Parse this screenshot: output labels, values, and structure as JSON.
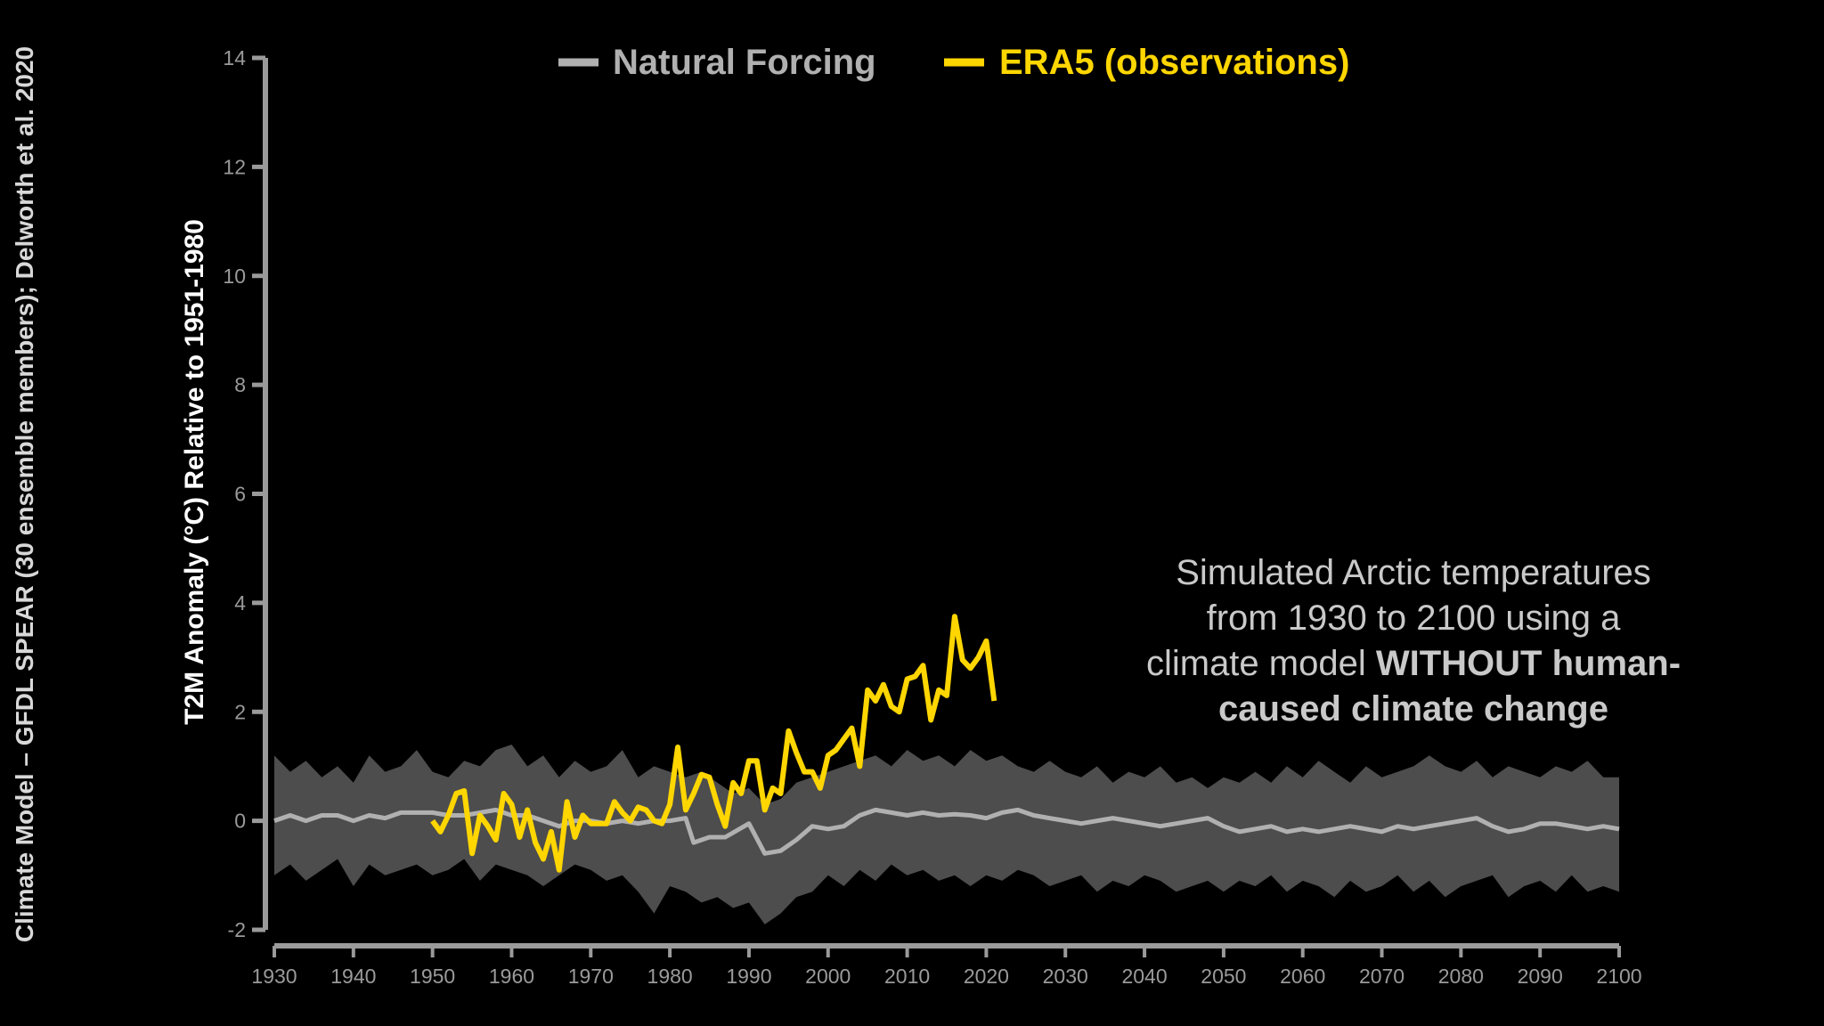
{
  "credit": "Climate Model – GFDL SPEAR (30 ensemble members); Delworth et al. 2020",
  "annotation": {
    "line1": "Simulated Arctic temperatures",
    "line2": "from 1930 to 2100 using a",
    "line3_normal": "climate model ",
    "line3_bold": "WITHOUT human-",
    "line4_bold": "caused climate change"
  },
  "chart_data": {
    "type": "line",
    "title": "",
    "xlabel": "",
    "ylabel": "T2M Anomaly (°C) Relative to 1951-1980",
    "xlim": [
      1930,
      2100
    ],
    "ylim": [
      -2,
      14
    ],
    "x_ticks": [
      1930,
      1940,
      1950,
      1960,
      1970,
      1980,
      1990,
      2000,
      2010,
      2020,
      2030,
      2040,
      2050,
      2060,
      2070,
      2080,
      2090,
      2100
    ],
    "y_ticks": [
      -2,
      0,
      2,
      4,
      6,
      8,
      10,
      12,
      14
    ],
    "grid": false,
    "legend_position": "top-center",
    "colors": {
      "natural": "#b0b0b0",
      "band": "#4d4d4d",
      "era5": "#ffd600"
    },
    "series": [
      {
        "name": "Natural Forcing",
        "kind": "ensemble-mean",
        "x": [
          1930,
          1932,
          1934,
          1936,
          1938,
          1940,
          1942,
          1944,
          1946,
          1948,
          1950,
          1952,
          1954,
          1956,
          1958,
          1960,
          1962,
          1964,
          1966,
          1968,
          1970,
          1972,
          1974,
          1976,
          1978,
          1980,
          1982,
          1983,
          1985,
          1987,
          1990,
          1992,
          1994,
          1996,
          1998,
          2000,
          2002,
          2004,
          2006,
          2008,
          2010,
          2012,
          2014,
          2016,
          2018,
          2020,
          2022,
          2024,
          2026,
          2028,
          2030,
          2032,
          2034,
          2036,
          2038,
          2040,
          2042,
          2044,
          2046,
          2048,
          2050,
          2052,
          2054,
          2056,
          2058,
          2060,
          2062,
          2064,
          2066,
          2068,
          2070,
          2072,
          2074,
          2076,
          2078,
          2080,
          2082,
          2084,
          2086,
          2088,
          2090,
          2092,
          2094,
          2096,
          2098,
          2100
        ],
        "values": [
          0.0,
          0.1,
          0.0,
          0.1,
          0.1,
          0.0,
          0.1,
          0.05,
          0.15,
          0.15,
          0.15,
          0.1,
          0.1,
          0.15,
          0.2,
          0.1,
          0.1,
          0.0,
          -0.1,
          0.0,
          0.0,
          -0.05,
          0.0,
          -0.05,
          0.0,
          0.0,
          0.05,
          -0.4,
          -0.3,
          -0.3,
          -0.05,
          -0.6,
          -0.55,
          -0.35,
          -0.1,
          -0.15,
          -0.1,
          0.1,
          0.2,
          0.15,
          0.1,
          0.15,
          0.1,
          0.12,
          0.1,
          0.05,
          0.15,
          0.2,
          0.1,
          0.05,
          0.0,
          -0.05,
          0.0,
          0.05,
          0.0,
          -0.05,
          -0.1,
          -0.05,
          0.0,
          0.05,
          -0.1,
          -0.2,
          -0.15,
          -0.1,
          -0.2,
          -0.15,
          -0.2,
          -0.15,
          -0.1,
          -0.15,
          -0.2,
          -0.1,
          -0.15,
          -0.1,
          -0.05,
          0.0,
          0.05,
          -0.1,
          -0.2,
          -0.15,
          -0.05,
          -0.05,
          -0.1,
          -0.15,
          -0.1,
          -0.15
        ]
      },
      {
        "name": "Natural Forcing ensemble range",
        "kind": "band",
        "x": [
          1930,
          1932,
          1934,
          1936,
          1938,
          1940,
          1942,
          1944,
          1946,
          1948,
          1950,
          1952,
          1954,
          1956,
          1958,
          1960,
          1962,
          1964,
          1966,
          1968,
          1970,
          1972,
          1974,
          1976,
          1978,
          1980,
          1982,
          1984,
          1986,
          1988,
          1990,
          1992,
          1994,
          1996,
          1998,
          2000,
          2002,
          2004,
          2006,
          2008,
          2010,
          2012,
          2014,
          2016,
          2018,
          2020,
          2022,
          2024,
          2026,
          2028,
          2030,
          2032,
          2034,
          2036,
          2038,
          2040,
          2042,
          2044,
          2046,
          2048,
          2050,
          2052,
          2054,
          2056,
          2058,
          2060,
          2062,
          2064,
          2066,
          2068,
          2070,
          2072,
          2074,
          2076,
          2078,
          2080,
          2082,
          2084,
          2086,
          2088,
          2090,
          2092,
          2094,
          2096,
          2098,
          2100
        ],
        "upper": [
          1.2,
          0.9,
          1.1,
          0.8,
          1.0,
          0.7,
          1.2,
          0.9,
          1.0,
          1.3,
          0.9,
          0.8,
          1.1,
          1.0,
          1.3,
          1.4,
          1.0,
          1.2,
          0.8,
          1.1,
          0.9,
          1.0,
          1.3,
          0.8,
          1.0,
          0.9,
          0.8,
          0.9,
          0.7,
          0.5,
          0.6,
          0.3,
          0.4,
          0.7,
          0.8,
          0.9,
          1.0,
          1.1,
          1.2,
          1.0,
          1.3,
          1.1,
          1.2,
          1.0,
          1.3,
          1.1,
          1.2,
          1.0,
          0.9,
          1.1,
          0.9,
          0.8,
          1.0,
          0.7,
          0.9,
          0.8,
          1.0,
          0.7,
          0.8,
          0.6,
          0.8,
          0.7,
          0.9,
          0.7,
          1.0,
          0.8,
          1.1,
          0.9,
          0.7,
          1.0,
          0.8,
          0.9,
          1.0,
          1.2,
          1.0,
          0.9,
          1.1,
          0.8,
          1.0,
          0.9,
          0.8,
          1.0,
          0.9,
          1.1,
          0.8,
          0.8
        ],
        "lower": [
          -1.0,
          -0.8,
          -1.1,
          -0.9,
          -0.7,
          -1.2,
          -0.8,
          -1.0,
          -0.9,
          -0.8,
          -1.0,
          -0.9,
          -0.7,
          -1.1,
          -0.8,
          -0.9,
          -1.0,
          -1.2,
          -1.0,
          -0.8,
          -0.9,
          -1.1,
          -1.0,
          -1.3,
          -1.7,
          -1.2,
          -1.3,
          -1.5,
          -1.4,
          -1.6,
          -1.5,
          -1.9,
          -1.7,
          -1.4,
          -1.3,
          -1.0,
          -1.2,
          -0.9,
          -1.1,
          -0.8,
          -1.0,
          -0.9,
          -1.1,
          -1.0,
          -1.2,
          -1.0,
          -1.1,
          -0.9,
          -1.0,
          -1.2,
          -1.1,
          -1.0,
          -1.3,
          -1.1,
          -1.2,
          -1.0,
          -1.1,
          -1.3,
          -1.2,
          -1.1,
          -1.3,
          -1.1,
          -1.2,
          -1.0,
          -1.3,
          -1.1,
          -1.2,
          -1.4,
          -1.1,
          -1.3,
          -1.2,
          -1.0,
          -1.3,
          -1.1,
          -1.4,
          -1.2,
          -1.1,
          -1.0,
          -1.4,
          -1.2,
          -1.1,
          -1.3,
          -1.0,
          -1.3,
          -1.2,
          -1.3
        ]
      },
      {
        "name": "ERA5 (observations)",
        "kind": "observations",
        "x": [
          1950,
          1951,
          1952,
          1953,
          1954,
          1955,
          1956,
          1957,
          1958,
          1959,
          1960,
          1961,
          1962,
          1963,
          1964,
          1965,
          1966,
          1967,
          1968,
          1969,
          1970,
          1971,
          1972,
          1973,
          1974,
          1975,
          1976,
          1977,
          1978,
          1979,
          1980,
          1981,
          1982,
          1983,
          1984,
          1985,
          1986,
          1987,
          1988,
          1989,
          1990,
          1991,
          1992,
          1993,
          1994,
          1995,
          1996,
          1997,
          1998,
          1999,
          2000,
          2001,
          2002,
          2003,
          2004,
          2005,
          2006,
          2007,
          2008,
          2009,
          2010,
          2011,
          2012,
          2013,
          2014,
          2015,
          2016,
          2017,
          2018,
          2019,
          2020,
          2021
        ],
        "values": [
          0.0,
          -0.2,
          0.1,
          0.5,
          0.55,
          -0.6,
          0.1,
          -0.1,
          -0.35,
          0.5,
          0.3,
          -0.3,
          0.2,
          -0.4,
          -0.7,
          -0.2,
          -0.9,
          0.35,
          -0.3,
          0.1,
          -0.05,
          -0.05,
          -0.05,
          0.35,
          0.15,
          0.0,
          0.25,
          0.2,
          0.0,
          -0.05,
          0.3,
          1.35,
          0.2,
          0.5,
          0.85,
          0.8,
          0.3,
          -0.1,
          0.7,
          0.5,
          1.1,
          1.1,
          0.2,
          0.6,
          0.5,
          1.65,
          1.25,
          0.9,
          0.9,
          0.6,
          1.2,
          1.3,
          1.5,
          1.7,
          1.0,
          2.4,
          2.2,
          2.5,
          2.1,
          2.0,
          2.6,
          2.65,
          2.85,
          1.85,
          2.4,
          2.3,
          3.75,
          2.95,
          2.8,
          3.0,
          3.3,
          2.2
        ]
      }
    ]
  }
}
